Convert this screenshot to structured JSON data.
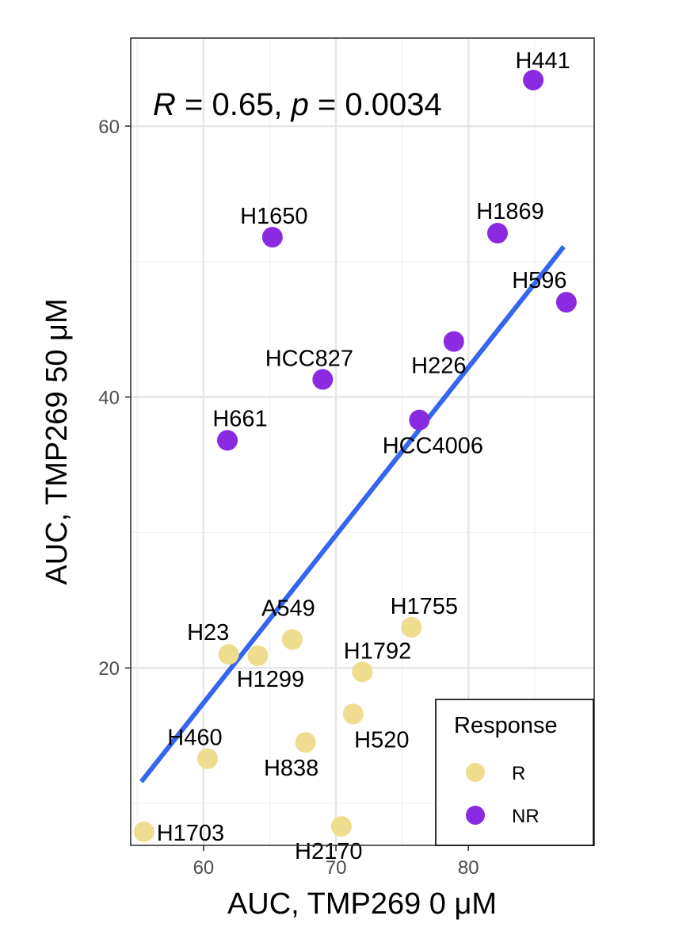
{
  "chart_data": {
    "type": "scatter",
    "xlabel": "AUC, TMP269 0 μM",
    "ylabel": "AUC, TMP269 50 μM",
    "xlim": [
      54.5,
      89.5
    ],
    "ylim": [
      6.9,
      66.5
    ],
    "x_ticks": [
      60,
      70,
      80
    ],
    "y_ticks": [
      20,
      40,
      60
    ],
    "grid": true,
    "annotation": {
      "r_symbol": "R",
      "r_value": " = 0.65, ",
      "p_symbol": "p",
      "p_value": " = 0.0034"
    },
    "legend": {
      "title": "Response",
      "placement": "bottom-right",
      "entries": [
        {
          "label": "R",
          "color": "#eedc8f"
        },
        {
          "label": "NR",
          "color": "#8a2be2"
        }
      ]
    },
    "series": [
      {
        "name": "R",
        "color": "#eedc8f",
        "points": [
          {
            "label": "H23",
            "x": 61.9,
            "y": 21.0
          },
          {
            "label": "H1299",
            "x": 64.1,
            "y": 20.9
          },
          {
            "label": "A549",
            "x": 66.7,
            "y": 22.1
          },
          {
            "label": "H1755",
            "x": 75.7,
            "y": 23.0
          },
          {
            "label": "H1792",
            "x": 72.0,
            "y": 19.7
          },
          {
            "label": "H520",
            "x": 71.3,
            "y": 16.6
          },
          {
            "label": "H838",
            "x": 67.7,
            "y": 14.5
          },
          {
            "label": "H460",
            "x": 60.3,
            "y": 13.3
          },
          {
            "label": "H2170",
            "x": 70.4,
            "y": 8.3
          },
          {
            "label": "H1703",
            "x": 55.5,
            "y": 7.9
          }
        ]
      },
      {
        "name": "NR",
        "color": "#8a2be2",
        "points": [
          {
            "label": "H441",
            "x": 84.9,
            "y": 63.4
          },
          {
            "label": "H1650",
            "x": 65.2,
            "y": 51.8
          },
          {
            "label": "H1869",
            "x": 82.2,
            "y": 52.1
          },
          {
            "label": "H596",
            "x": 87.4,
            "y": 47.0
          },
          {
            "label": "H226",
            "x": 78.9,
            "y": 44.1
          },
          {
            "label": "HCC827",
            "x": 69.0,
            "y": 41.3
          },
          {
            "label": "HCC4006",
            "x": 76.3,
            "y": 38.3
          },
          {
            "label": "H661",
            "x": 61.8,
            "y": 36.8
          }
        ]
      }
    ],
    "regression_line": {
      "color": "#3366ee",
      "x": [
        55.3,
        87.2
      ],
      "y": [
        11.6,
        51.1
      ]
    }
  }
}
